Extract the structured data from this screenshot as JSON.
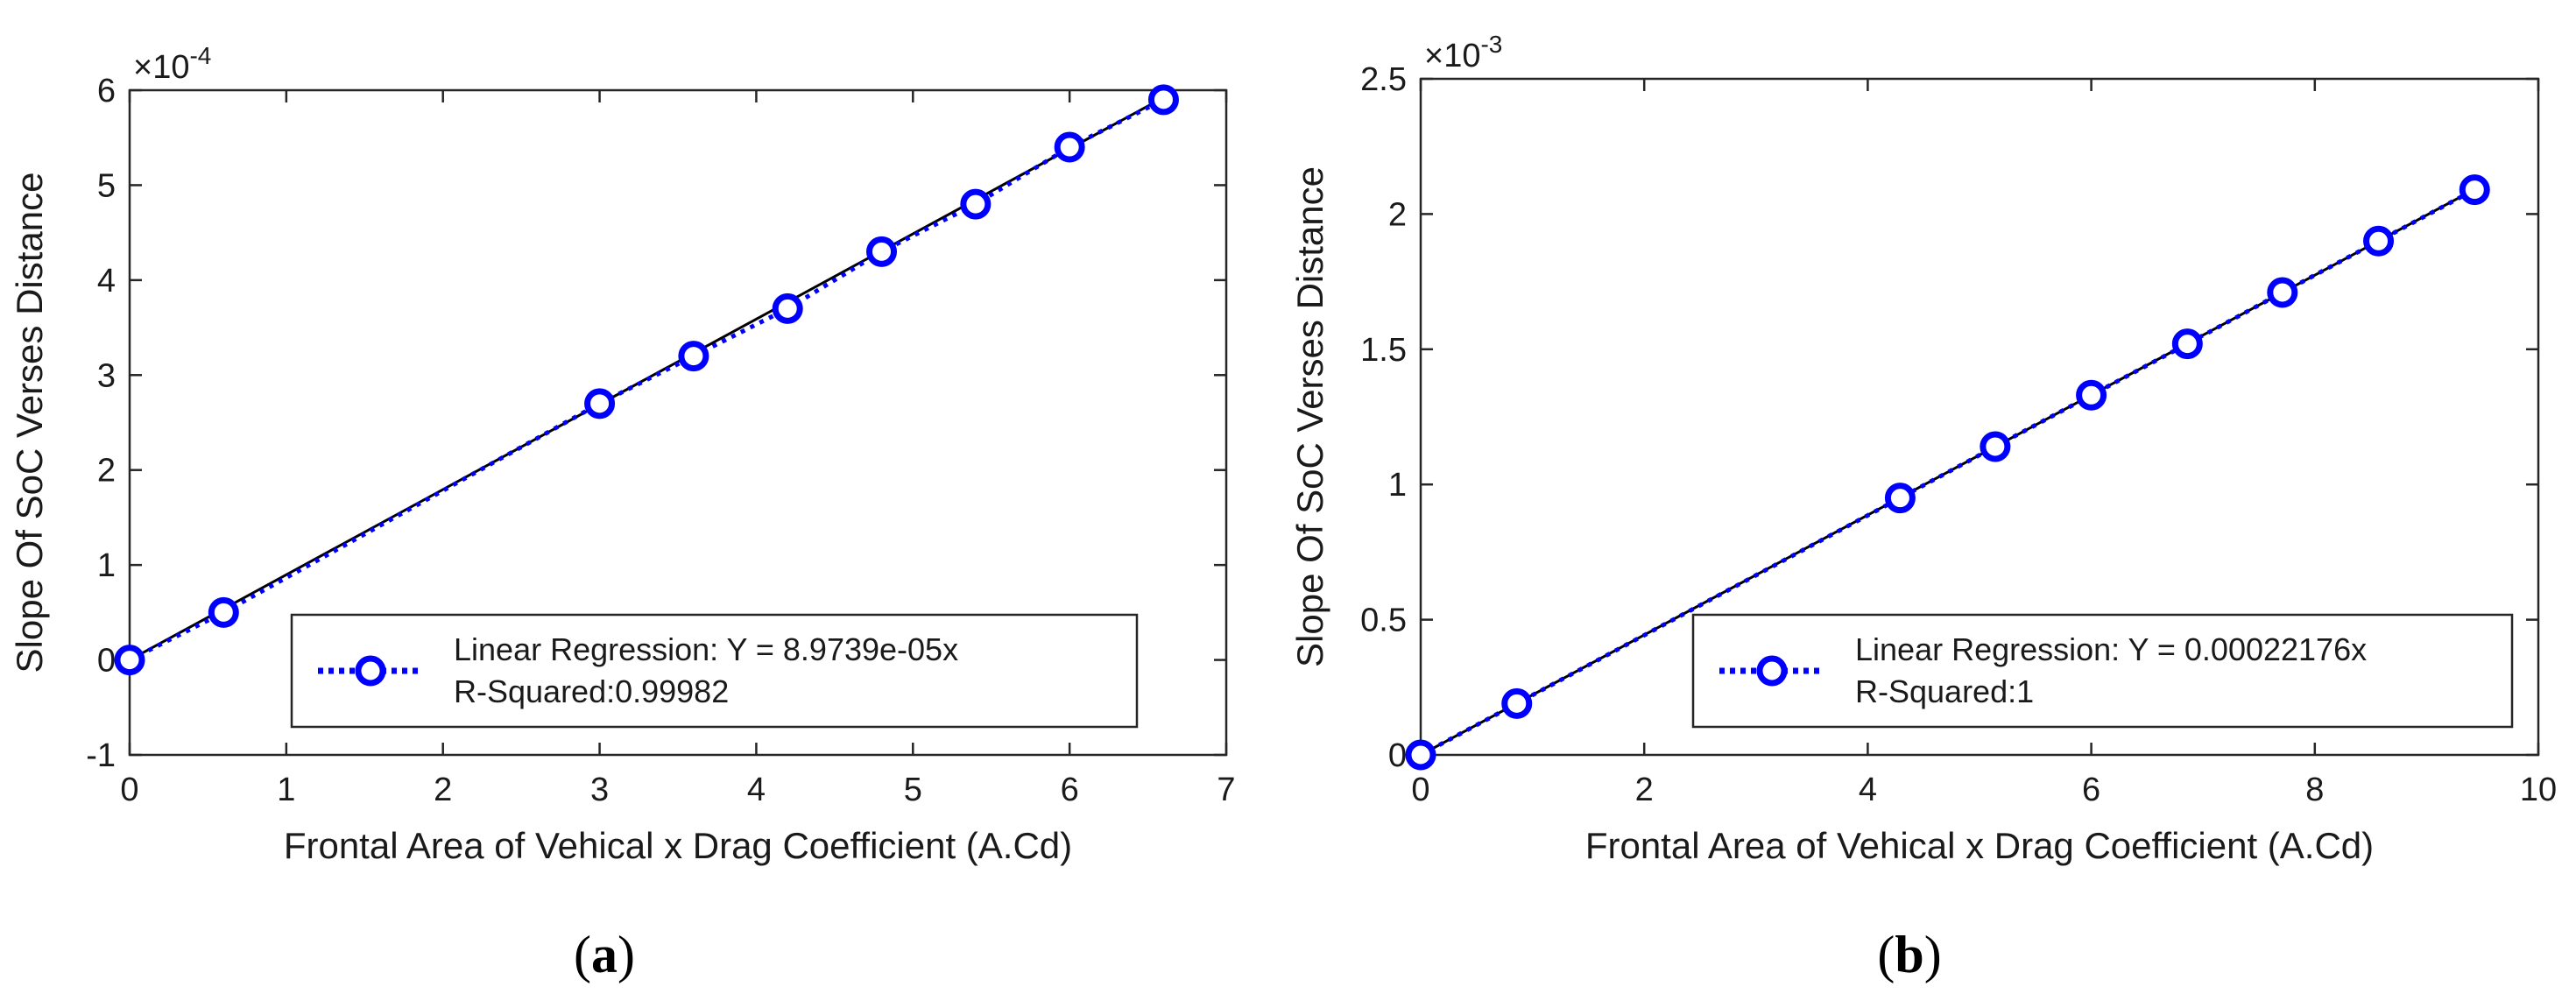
{
  "colors": {
    "marker": "#0000ff",
    "fit_line": "#000000",
    "frame": "#262626",
    "background": "#ffffff"
  },
  "chart_data": [
    {
      "panel": "(a)",
      "caption_letter": "a",
      "type": "line",
      "xlabel": "Frontal Area of Vehical x Drag Coefficient (A.Cd)",
      "ylabel": "Slope Of SoC Verses Distance",
      "y_multiplier": "×10",
      "y_exponent": "-4",
      "xlim": [
        0,
        7
      ],
      "ylim": [
        -1,
        6
      ],
      "xticks": [
        0,
        1,
        2,
        3,
        4,
        5,
        6,
        7
      ],
      "xtick_labels": [
        "0",
        "1",
        "2",
        "3",
        "4",
        "5",
        "6",
        "7"
      ],
      "yticks": [
        -1,
        0,
        1,
        2,
        3,
        4,
        5,
        6
      ],
      "ytick_labels": [
        "-1",
        "0",
        "1",
        "2",
        "3",
        "4",
        "5",
        "6"
      ],
      "grid": false,
      "legend_location": "bottom-right",
      "legend_lines": [
        "Linear Regression: Y = 8.9739e-05x",
        "R-Squared:0.99982"
      ],
      "fit_slope": 0.89739,
      "series": [
        {
          "name": "Linear Regression: Y = 8.9739e-05x",
          "style": "dotted-line-circle-markers",
          "x": [
            0,
            0.6,
            3.0,
            3.6,
            4.2,
            4.8,
            5.4,
            6.0,
            6.6
          ],
          "y": [
            0,
            0.5,
            2.7,
            3.2,
            3.7,
            4.3,
            4.8,
            5.4,
            5.9
          ]
        }
      ]
    },
    {
      "panel": "(b)",
      "caption_letter": "b",
      "type": "line",
      "xlabel": "Frontal Area of Vehical x Drag Coefficient (A.Cd)",
      "ylabel": "Slope Of SoC Verses Distance",
      "y_multiplier": "×10",
      "y_exponent": "-3",
      "xlim": [
        0,
        10
      ],
      "ylim": [
        0,
        2.5
      ],
      "xticks": [
        0,
        2,
        4,
        6,
        8,
        10
      ],
      "xtick_labels": [
        "0",
        "2",
        "4",
        "6",
        "8",
        "10"
      ],
      "yticks": [
        0,
        0.5,
        1,
        1.5,
        2,
        2.5
      ],
      "ytick_labels": [
        "0",
        "0.5",
        "1",
        "1.5",
        "2",
        "2.5"
      ],
      "grid": false,
      "legend_location": "bottom-right",
      "legend_lines": [
        "Linear Regression: Y = 0.00022176x",
        "R-Squared:1"
      ],
      "fit_slope": 0.22176,
      "series": [
        {
          "name": "Linear Regression: Y = 0.00022176x",
          "style": "dotted-line-circle-markers",
          "x": [
            0,
            0.86,
            4.29,
            5.14,
            6.0,
            6.86,
            7.71,
            8.57,
            9.43
          ],
          "y": [
            0,
            0.19,
            0.95,
            1.14,
            1.33,
            1.52,
            1.71,
            1.9,
            2.09
          ]
        }
      ]
    }
  ]
}
